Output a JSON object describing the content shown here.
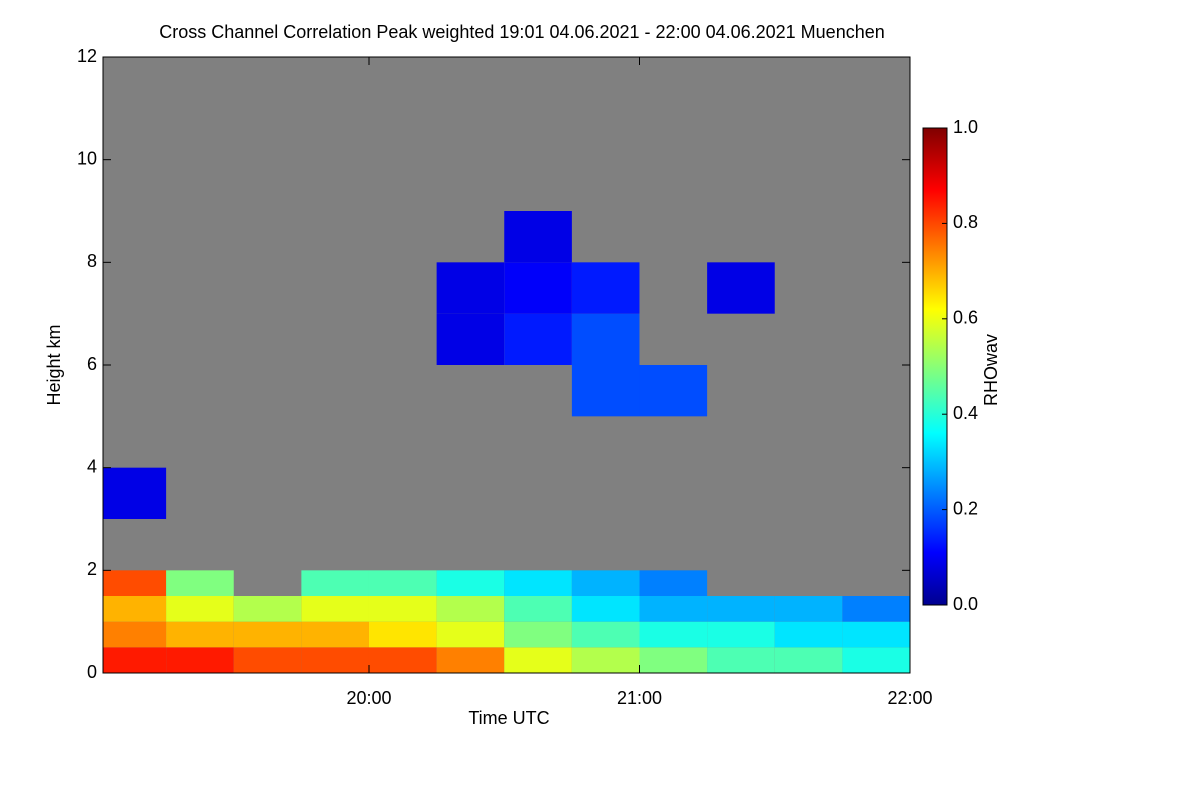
{
  "chart_data": {
    "type": "heatmap",
    "title": "Cross Channel Correlation Peak weighted   19:01 04.06.2021 - 22:00 04.06.2021 Muenchen",
    "x_label": "Time UTC",
    "y_label": "Height km",
    "colorbar_label": "RHOwav",
    "colormap": "jet",
    "xbins": [
      1141,
      1155,
      1170,
      1185,
      1200,
      1215,
      1230,
      1245,
      1260,
      1275,
      1290,
      1305,
      1320
    ],
    "ybins": [
      0,
      0.5,
      1,
      1.5,
      2,
      3,
      4,
      5,
      6,
      7,
      8,
      9,
      12
    ],
    "z": [
      [
        0.85,
        0.85,
        0.8,
        0.8,
        0.8,
        0.75,
        0.6,
        0.55,
        0.5,
        0.45,
        0.45,
        0.4
      ],
      [
        0.75,
        0.7,
        0.7,
        0.7,
        0.65,
        0.6,
        0.5,
        0.45,
        0.4,
        0.4,
        0.35,
        0.35
      ],
      [
        0.7,
        0.6,
        0.55,
        0.6,
        0.6,
        0.55,
        0.45,
        0.35,
        0.3,
        0.3,
        0.3,
        0.25
      ],
      [
        0.8,
        0.5,
        null,
        0.45,
        0.45,
        0.4,
        0.35,
        0.3,
        0.25,
        null,
        null,
        null
      ],
      [
        null,
        null,
        null,
        null,
        null,
        null,
        null,
        null,
        null,
        null,
        null,
        null
      ],
      [
        0.1,
        null,
        null,
        null,
        null,
        null,
        null,
        null,
        null,
        null,
        null,
        null
      ],
      [
        null,
        null,
        null,
        null,
        null,
        null,
        null,
        null,
        null,
        null,
        null,
        null
      ],
      [
        null,
        null,
        null,
        null,
        null,
        null,
        null,
        0.2,
        0.2,
        null,
        null,
        null
      ],
      [
        null,
        null,
        null,
        null,
        null,
        0.1,
        0.15,
        0.2,
        null,
        null,
        null,
        null
      ],
      [
        null,
        null,
        null,
        null,
        null,
        0.1,
        0.12,
        0.15,
        null,
        0.1,
        null,
        null
      ],
      [
        null,
        null,
        null,
        null,
        null,
        null,
        0.1,
        null,
        null,
        null,
        null,
        null
      ],
      [
        null,
        null,
        null,
        null,
        null,
        null,
        null,
        null,
        null,
        null,
        null,
        null
      ]
    ],
    "xlim": [
      1141,
      1320
    ],
    "xticks": [
      {
        "value": 1200,
        "label": "20:00"
      },
      {
        "value": 1260,
        "label": "21:00"
      },
      {
        "value": 1320,
        "label": "22:00"
      }
    ],
    "ylim": [
      0,
      12
    ],
    "yticks": [
      0,
      2,
      4,
      6,
      8,
      10,
      12
    ],
    "zlim": [
      0,
      1
    ],
    "zticks": [
      {
        "value": 0,
        "label": "0.0"
      },
      {
        "value": 0.2,
        "label": "0.2"
      },
      {
        "value": 0.4,
        "label": "0.4"
      },
      {
        "value": 0.6,
        "label": "0.6"
      },
      {
        "value": 0.8,
        "label": "0.8"
      },
      {
        "value": 1,
        "label": "1.0"
      }
    ],
    "background_color": "#808080"
  }
}
